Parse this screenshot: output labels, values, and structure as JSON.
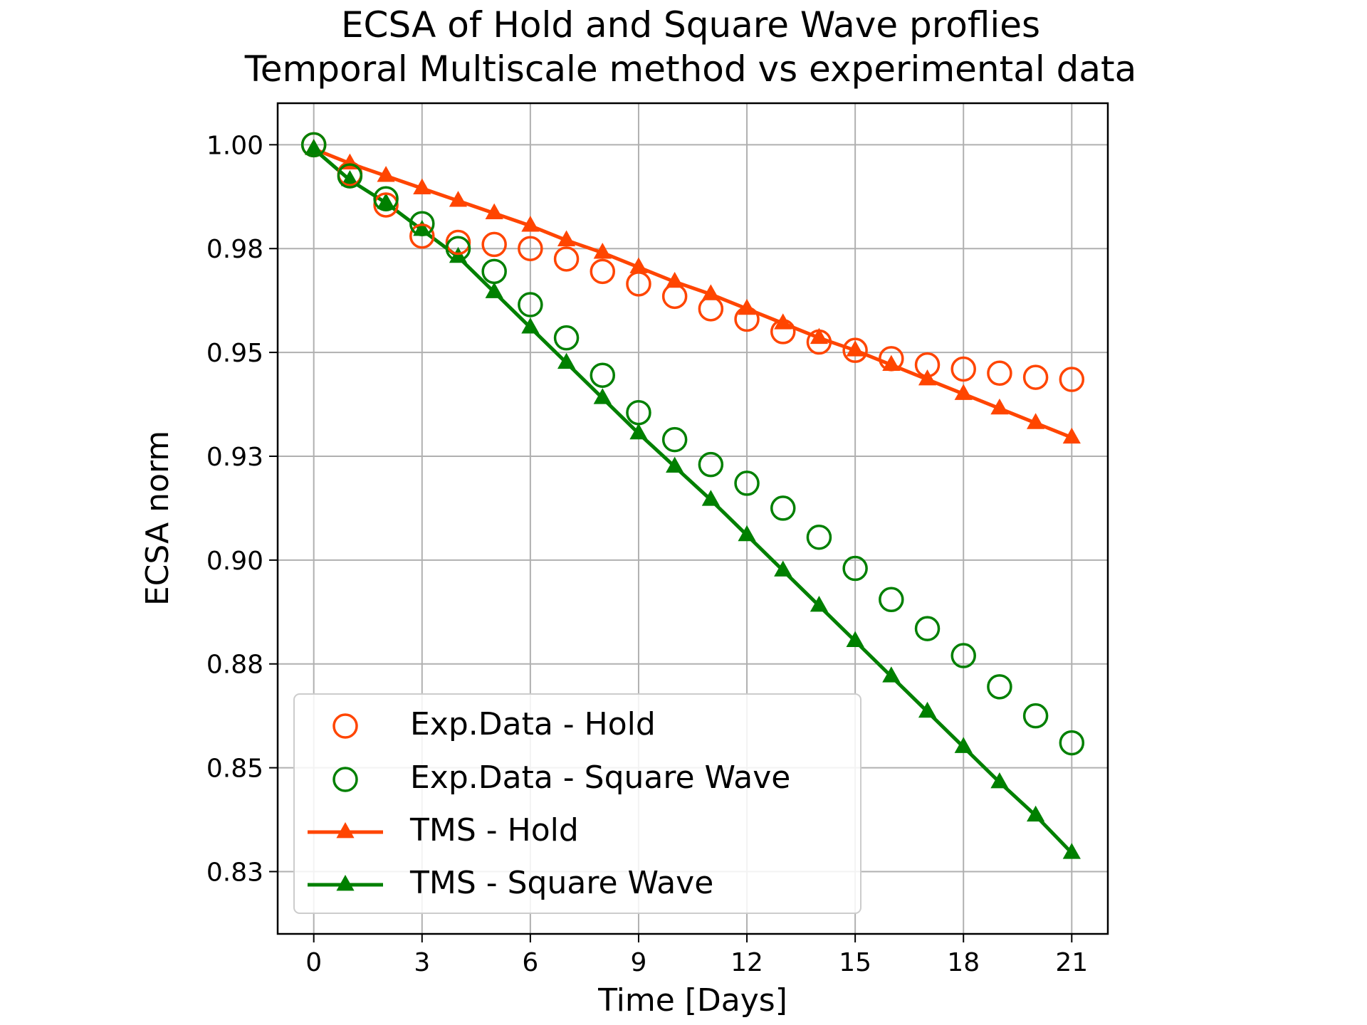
{
  "chart_data": {
    "type": "line",
    "title": [
      "ECSA of Hold and Square Wave proflies",
      "Temporal Multiscale method vs experimental data"
    ],
    "xlabel": "Time [Days]",
    "ylabel": "ECSA norm",
    "xlim": [
      -1,
      22
    ],
    "ylim": [
      0.81,
      1.01
    ],
    "xticks": [
      0,
      3,
      6,
      9,
      12,
      15,
      18,
      21
    ],
    "xtick_labels": [
      "0",
      "3",
      "6",
      "9",
      "12",
      "15",
      "18",
      "21"
    ],
    "yticks": [
      0.825,
      0.85,
      0.875,
      0.9,
      0.925,
      0.95,
      0.975,
      1.0
    ],
    "ytick_labels": [
      "0.83",
      "0.85",
      "0.88",
      "0.90",
      "0.93",
      "0.95",
      "0.98",
      "1.00"
    ],
    "grid": true,
    "legend_position": "lower-left",
    "series": [
      {
        "name": "Exp.Data - Hold",
        "style": "open-circle",
        "color": "#ff4500",
        "x": [
          0,
          1,
          2,
          3,
          4,
          5,
          6,
          7,
          8,
          9,
          10,
          11,
          12,
          13,
          14,
          15,
          16,
          17,
          18,
          19,
          20,
          21
        ],
        "y": [
          1.0,
          0.993,
          0.9855,
          0.978,
          0.9765,
          0.976,
          0.975,
          0.9725,
          0.9695,
          0.9665,
          0.9635,
          0.9605,
          0.958,
          0.955,
          0.9525,
          0.9505,
          0.9485,
          0.947,
          0.946,
          0.945,
          0.944,
          0.9435
        ]
      },
      {
        "name": "Exp.Data - Square Wave",
        "style": "open-circle",
        "color": "#008000",
        "x": [
          0,
          1,
          2,
          3,
          4,
          5,
          6,
          7,
          8,
          9,
          10,
          11,
          12,
          13,
          14,
          15,
          16,
          17,
          18,
          19,
          20,
          21
        ],
        "y": [
          1.0,
          0.9925,
          0.987,
          0.981,
          0.975,
          0.9695,
          0.9615,
          0.9535,
          0.9445,
          0.9355,
          0.929,
          0.923,
          0.9185,
          0.9125,
          0.9055,
          0.898,
          0.8905,
          0.8835,
          0.877,
          0.8695,
          0.8625,
          0.856
        ]
      },
      {
        "name": "TMS - Hold",
        "style": "line-triangle",
        "color": "#ff4500",
        "x": [
          0,
          1,
          2,
          3,
          4,
          5,
          6,
          7,
          8,
          9,
          10,
          11,
          12,
          13,
          14,
          15,
          16,
          17,
          18,
          19,
          20,
          21
        ],
        "y": [
          0.999,
          0.9955,
          0.9925,
          0.9895,
          0.9865,
          0.9835,
          0.9805,
          0.977,
          0.974,
          0.9705,
          0.967,
          0.964,
          0.9605,
          0.957,
          0.9535,
          0.9505,
          0.947,
          0.9435,
          0.94,
          0.9365,
          0.933,
          0.9295
        ]
      },
      {
        "name": "TMS - Square Wave",
        "style": "line-triangle",
        "color": "#008000",
        "x": [
          0,
          1,
          2,
          3,
          4,
          5,
          6,
          7,
          8,
          9,
          10,
          11,
          12,
          13,
          14,
          15,
          16,
          17,
          18,
          19,
          20,
          21
        ],
        "y": [
          0.999,
          0.9915,
          0.986,
          0.9795,
          0.973,
          0.9645,
          0.956,
          0.9475,
          0.939,
          0.9305,
          0.9225,
          0.9145,
          0.906,
          0.8975,
          0.889,
          0.8805,
          0.872,
          0.8635,
          0.855,
          0.8465,
          0.8385,
          0.8295
        ]
      }
    ]
  }
}
